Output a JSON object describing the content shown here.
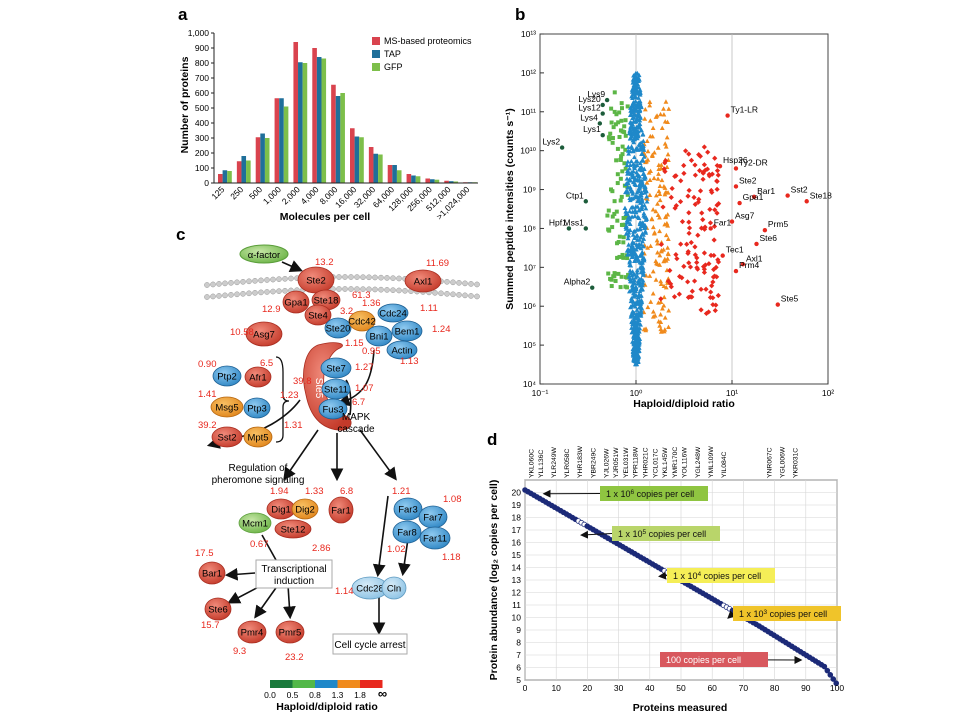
{
  "colors": {
    "ms": "#d9434e",
    "tap": "#1f6f9a",
    "gfp": "#7dbf4a",
    "red_marker": "#e8281e",
    "orange_marker": "#f08a1c",
    "blue_marker": "#1f88c9",
    "green_marker": "#5cb646",
    "dark_green_marker": "#1c5c3a",
    "red_value": "#e8281e",
    "navy_point": "#1c2a78"
  },
  "chart_data": [
    {
      "panel": "a",
      "type": "bar",
      "xlabel": "Molecules per cell",
      "ylabel": "Number of proteins",
      "ylim": [
        0,
        1000
      ],
      "yticks": [
        "0",
        "100",
        "200",
        "300",
        "400",
        "500",
        "600",
        "700",
        "800",
        "900",
        "1,000"
      ],
      "categories": [
        "125",
        "250",
        "500",
        "1,000",
        "2,000",
        "4,000",
        "8,000",
        "16,000",
        "32,000",
        "64,000",
        "128,000",
        "256,000",
        "512,000",
        ">1,024,000"
      ],
      "legend_position": "top-right",
      "series": [
        {
          "name": "MS-based proteomics",
          "color_key": "ms",
          "values": [
            60,
            145,
            305,
            565,
            940,
            900,
            655,
            365,
            240,
            120,
            60,
            30,
            15,
            5
          ]
        },
        {
          "name": "TAP",
          "color_key": "tap",
          "values": [
            85,
            180,
            330,
            565,
            805,
            840,
            580,
            310,
            195,
            120,
            50,
            25,
            12,
            5
          ]
        },
        {
          "name": "GFP",
          "color_key": "gfp",
          "values": [
            80,
            150,
            300,
            510,
            800,
            830,
            600,
            305,
            190,
            85,
            45,
            22,
            10,
            5
          ]
        }
      ]
    },
    {
      "panel": "b",
      "type": "scatter",
      "xlabel": "Haploid/diploid ratio",
      "ylabel": "Summed peptide intensities (counts s⁻¹)",
      "xscale": "log",
      "yscale": "log",
      "xlim": [
        0.1,
        100
      ],
      "ylim": [
        10000,
        10000000000000
      ],
      "xticks": [
        "10⁻¹",
        "10⁰",
        "10¹",
        "10²"
      ],
      "yticks": [
        "10⁴",
        "10⁵",
        "10⁶",
        "10⁷",
        "10⁸",
        "10⁹",
        "10¹⁰",
        "10¹¹",
        "10¹²",
        "10¹³"
      ],
      "labeled_points": [
        {
          "label": "Ty1-LR",
          "x": 9,
          "y": 80000000000
        },
        {
          "label": "Hsp26",
          "x": 7.5,
          "y": 4000000000
        },
        {
          "label": "Ty2-DR",
          "x": 11,
          "y": 3500000000
        },
        {
          "label": "Ste2",
          "x": 11,
          "y": 1200000000
        },
        {
          "label": "Sst2",
          "x": 38,
          "y": 700000000
        },
        {
          "label": "Bar1",
          "x": 17,
          "y": 650000000
        },
        {
          "label": "Ste18",
          "x": 60,
          "y": 500000000
        },
        {
          "label": "Gpa1",
          "x": 12,
          "y": 450000000
        },
        {
          "label": "Asg7",
          "x": 10,
          "y": 150000000
        },
        {
          "label": "Far1",
          "x": 6,
          "y": 100000000
        },
        {
          "label": "Prm5",
          "x": 22,
          "y": 90000000
        },
        {
          "label": "Ste6",
          "x": 18,
          "y": 40000000
        },
        {
          "label": "Tec1",
          "x": 8,
          "y": 20000000
        },
        {
          "label": "Axl1",
          "x": 13,
          "y": 12000000
        },
        {
          "label": "Prm4",
          "x": 11,
          "y": 8000000
        },
        {
          "label": "Ste5",
          "x": 30,
          "y": 1100000
        },
        {
          "label": "Lys9",
          "x": 0.5,
          "y": 200000000000
        },
        {
          "label": "Lys20",
          "x": 0.45,
          "y": 150000000000
        },
        {
          "label": "Lys12",
          "x": 0.45,
          "y": 90000000000
        },
        {
          "label": "Lys4",
          "x": 0.42,
          "y": 50000000000
        },
        {
          "label": "Lys2",
          "x": 0.17,
          "y": 12000000000
        },
        {
          "label": "Lys1",
          "x": 0.45,
          "y": 25000000000
        },
        {
          "label": "Ctp1",
          "x": 0.3,
          "y": 500000000
        },
        {
          "label": "Hpf1",
          "x": 0.2,
          "y": 100000000
        },
        {
          "label": "Mss1",
          "x": 0.3,
          "y": 100000000
        },
        {
          "label": "Alpha2",
          "x": 0.35,
          "y": 3000000
        }
      ]
    },
    {
      "panel": "d",
      "type": "scatter",
      "xlabel": "Proteins measured",
      "ylabel": "Protein abundance (log₂ copies per cell)",
      "xlim": [
        0,
        100
      ],
      "ylim": [
        5,
        21
      ],
      "xticks": [
        "0",
        "10",
        "20",
        "30",
        "40",
        "50",
        "60",
        "70",
        "80",
        "90",
        "100"
      ],
      "yticks": [
        "5",
        "6",
        "7",
        "8",
        "9",
        "10",
        "11",
        "12",
        "13",
        "14",
        "15",
        "16",
        "17",
        "18",
        "19",
        "20"
      ],
      "top_labels": [
        "YKL060C",
        "YLL136C",
        "YLR249W",
        "YLR058C",
        "YHR183W",
        "YBR249C",
        "YJL026W",
        "YJR051W",
        "YEL031W",
        "YPR118W",
        "YHR021C",
        "YCL017C",
        "YKL145W",
        "YMR170C",
        "YOL116W",
        "YGL248W",
        "YML109W",
        "YIL084C",
        "YNR067C",
        "YGL006W",
        "YKR031C"
      ],
      "callouts": [
        {
          "text": "1 x 10",
          "sup": "6",
          "rest": " copies per cell",
          "color": "#8fc541",
          "x": 5,
          "y": 19.9
        },
        {
          "text": "1 x 10",
          "sup": "5",
          "rest": " copies per cell",
          "color": "#b9d56a",
          "x": 17,
          "y": 16.6
        },
        {
          "text": "1 x 10",
          "sup": "4",
          "rest": " copies per cell",
          "color": "#f5ee57",
          "x": 42,
          "y": 13.3
        },
        {
          "text": "1 x 10",
          "sup": "3",
          "rest": " copies per cell",
          "color": "#f0c42a",
          "x": 64,
          "y": 10
        },
        {
          "text": "100 copies per cell",
          "sup": "",
          "rest": "",
          "color": "#d8585e",
          "x": 87,
          "y": 6.6
        }
      ]
    }
  ],
  "panel_letters": [
    "a",
    "b",
    "c",
    "d"
  ],
  "pathway": {
    "alpha_factor": "α-factor",
    "nodes": {
      "ste2": "Ste2",
      "axl1": "Axl1",
      "gpa1": "Gpa1",
      "ste18": "Ste18",
      "ste4": "Ste4",
      "asg7": "Asg7",
      "ste20": "Ste20",
      "cdc42": "Cdc42",
      "cdc24": "Cdc24",
      "bni1": "Bni1",
      "bem1": "Bem1",
      "actin": "Actin",
      "ste5": "Ste5",
      "ste7": "Ste7",
      "ste11": "Ste11",
      "fus3": "Fus3",
      "ptp2": "Ptp2",
      "afr1": "Afr1",
      "msg5": "Msg5",
      "ptp3": "Ptp3",
      "sst2": "Sst2",
      "mpt5": "Mpt5",
      "dig1": "Dig1",
      "dig2": "Dig2",
      "ste12": "Ste12",
      "mcm1": "Mcm1",
      "far1": "Far1",
      "far3": "Far3",
      "far7": "Far7",
      "far8": "Far8",
      "far11": "Far11",
      "cdc28": "Cdc28",
      "cln": "Cln",
      "bar1": "Bar1",
      "ste6": "Ste6",
      "pmr4": "Pmr4",
      "pmr5": "Pmr5"
    },
    "values": {
      "ste2": "13.2",
      "axl1": "11.69",
      "gpa1": "12.9",
      "ste18": "61.3",
      "ste4": "3.2",
      "cdc42": "1.36",
      "cdc24": "1.11",
      "bem1": "1.24",
      "asg7": "10.58",
      "ste20": "1.15",
      "bni1": "0.95",
      "actin": "1.13",
      "ste5": "39.8",
      "ste7": "1.27",
      "ste11": "1.07",
      "fus3": "6.7",
      "ptp2": "0.90",
      "afr1": "6.5",
      "msg5": "1.41",
      "ptp3": "1.23",
      "sst2": "39.2",
      "mpt5": "1.31",
      "dig1": "1.94",
      "dig2": "1.33",
      "far1": "6.8",
      "far3": "1.21",
      "far7": "1.08",
      "far8": "1.02",
      "far11": "1.18",
      "mcm1": "0.67",
      "ste12": "2.86",
      "cdc28": "1.14",
      "bar1": "17.5",
      "ste6": "15.7",
      "pmr4": "9.3",
      "pmr5": "23.2"
    },
    "labels": {
      "mapk": "MAPK",
      "cascade": "cascade",
      "regulation_line1": "Regulation of",
      "regulation_line2": "pheromone signaling",
      "transcription_line1": "Transcriptional",
      "transcription_line2": "induction",
      "cell_cycle": "Cell cycle arrest"
    },
    "colorbar": {
      "ticks": [
        "0.0",
        "0.5",
        "0.8",
        "1.3",
        "1.8",
        "∞"
      ],
      "label": "Haploid/diploid ratio",
      "colors": [
        "#1a7a3c",
        "#52b848",
        "#1f88c9",
        "#f08a1c",
        "#e8281e"
      ]
    }
  }
}
